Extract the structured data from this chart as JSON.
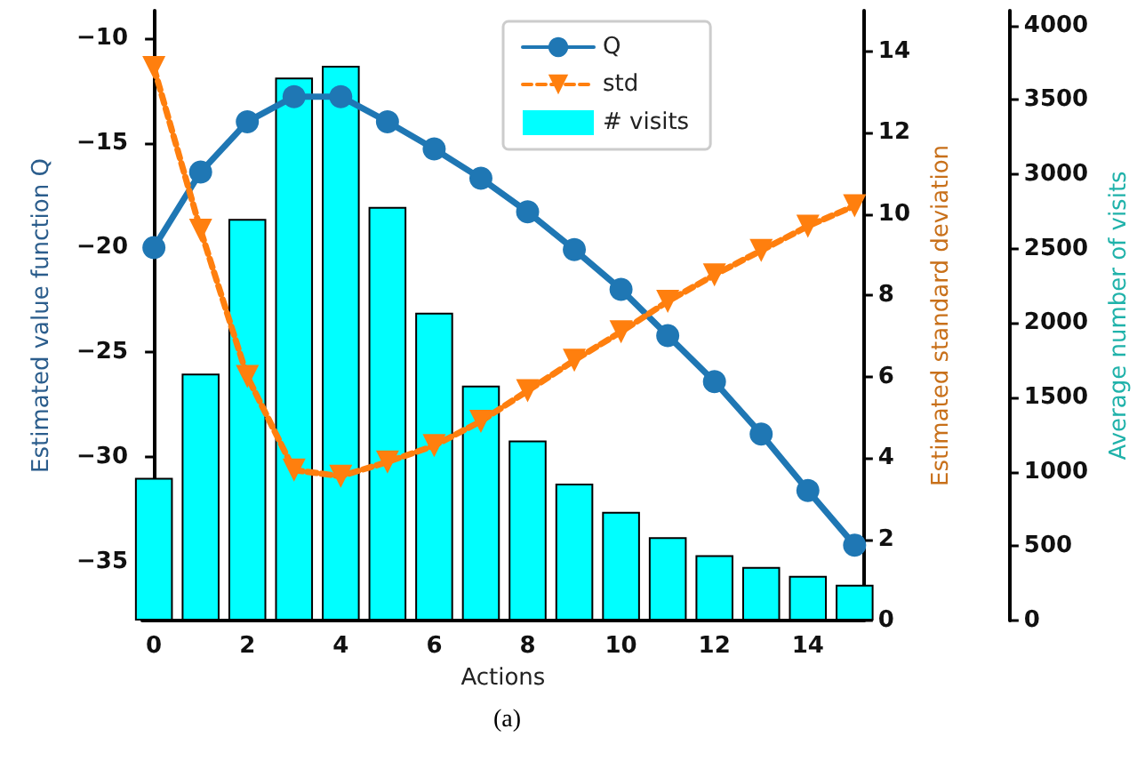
{
  "chart_data": {
    "type": "bar",
    "xlabel": "Actions",
    "ylabel": "Estimated value function Q",
    "y2label": "Estimated standard deviation",
    "y3label": "Average number of visits",
    "x": [
      0,
      1,
      2,
      3,
      4,
      5,
      6,
      7,
      8,
      9,
      10,
      11,
      12,
      13,
      14,
      15
    ],
    "xlim": [
      -0.25,
      15.2
    ],
    "xticks": [
      0,
      2,
      4,
      6,
      8,
      10,
      12,
      14
    ],
    "ylim": [
      -37.8,
      -8.7
    ],
    "yticks": [
      -35,
      -30,
      -25,
      -20,
      -15,
      -10
    ],
    "y2lim": [
      0,
      15
    ],
    "y2ticks": [
      0,
      2,
      4,
      6,
      8,
      10,
      12,
      14
    ],
    "y3lim": [
      0,
      4100
    ],
    "y3ticks": [
      0,
      500,
      1000,
      1500,
      2000,
      2500,
      3000,
      3500,
      4000
    ],
    "series": [
      {
        "name": "Q",
        "type": "line",
        "color": "#1f77b4",
        "marker": "circle",
        "line_style": "solid",
        "values": [
          -20.0,
          -16.4,
          -14.0,
          -12.8,
          -12.8,
          -14.0,
          -15.3,
          -16.7,
          -18.3,
          -20.1,
          -22.0,
          -24.2,
          -26.4,
          -28.9,
          -31.6,
          -34.2
        ]
      },
      {
        "name": "std",
        "type": "line",
        "axis": "y2",
        "color": "#ff7f0e",
        "marker": "triangle",
        "line_style": "dashed",
        "values": [
          13.6,
          9.6,
          6.0,
          3.7,
          3.55,
          3.9,
          4.3,
          4.9,
          5.65,
          6.4,
          7.1,
          7.85,
          8.5,
          9.1,
          9.7,
          10.2
        ]
      },
      {
        "name": "# visits",
        "axis": "y3",
        "color": "#00ffff",
        "values": [
          960,
          1660,
          2700,
          3650,
          3730,
          2780,
          2070,
          1580,
          1210,
          920,
          730,
          560,
          440,
          360,
          300,
          240
        ]
      }
    ],
    "legend": "top",
    "grid": false,
    "annotations": [
      "(a)"
    ]
  }
}
